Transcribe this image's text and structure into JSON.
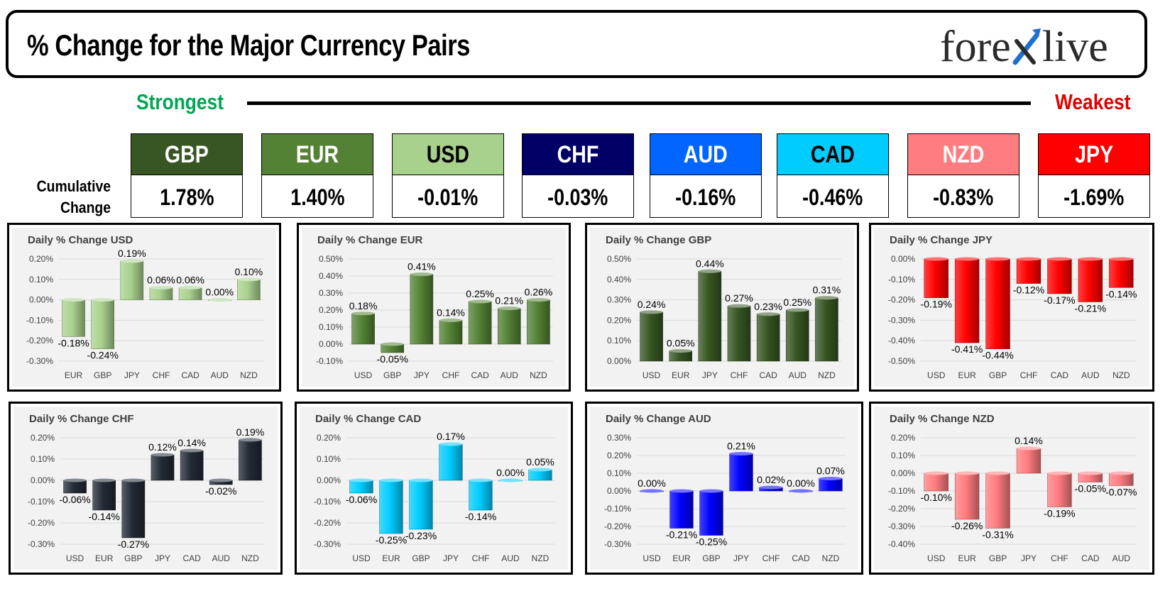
{
  "header": {
    "title": "% Change for the Major Currency Pairs",
    "logo_part1": "fore",
    "logo_part2": "live"
  },
  "ranking": {
    "strongest_label": "Strongest",
    "weakest_label": "Weakest",
    "cumulative_label_line1": "Cumulative",
    "cumulative_label_line2": "Change",
    "currencies": [
      {
        "code": "GBP",
        "value": "1.78%",
        "bg": "#375623",
        "fg": "#ffffff"
      },
      {
        "code": "EUR",
        "value": "1.40%",
        "bg": "#548235",
        "fg": "#ffffff"
      },
      {
        "code": "USD",
        "value": "-0.01%",
        "bg": "#a9d18e",
        "fg": "#000000"
      },
      {
        "code": "CHF",
        "value": "-0.03%",
        "bg": "#000066",
        "fg": "#ffffff"
      },
      {
        "code": "AUD",
        "value": "-0.16%",
        "bg": "#0066ff",
        "fg": "#ffffff"
      },
      {
        "code": "CAD",
        "value": "-0.46%",
        "bg": "#00ccff",
        "fg": "#000000"
      },
      {
        "code": "NZD",
        "value": "-0.83%",
        "bg": "#ff7c80",
        "fg": "#ffffff"
      },
      {
        "code": "JPY",
        "value": "-1.69%",
        "bg": "#ff0000",
        "fg": "#ffffff"
      }
    ]
  },
  "chart_data": [
    {
      "type": "bar",
      "title": "Daily % Change USD",
      "categories": [
        "EUR",
        "GBP",
        "JPY",
        "CHF",
        "CAD",
        "AUD",
        "NZD"
      ],
      "values": [
        -0.18,
        -0.24,
        0.19,
        0.06,
        0.06,
        0.0,
        0.1
      ],
      "ylim": [
        -0.3,
        0.2
      ],
      "yticks": [
        "0.20%",
        "0.10%",
        "0.00%",
        "-0.10%",
        "-0.20%",
        "-0.30%"
      ],
      "color": "#a9d18e",
      "grid": true
    },
    {
      "type": "bar",
      "title": "Daily % Change EUR",
      "categories": [
        "USD",
        "GBP",
        "JPY",
        "CHF",
        "CAD",
        "AUD",
        "NZD"
      ],
      "values": [
        0.18,
        -0.05,
        0.41,
        0.14,
        0.25,
        0.21,
        0.26
      ],
      "ylim": [
        -0.1,
        0.5
      ],
      "yticks": [
        "0.50%",
        "0.40%",
        "0.30%",
        "0.20%",
        "0.10%",
        "0.00%",
        "-0.10%"
      ],
      "color": "#548235",
      "grid": true
    },
    {
      "type": "bar",
      "title": "Daily % Change GBP",
      "categories": [
        "USD",
        "EUR",
        "JPY",
        "CHF",
        "CAD",
        "AUD",
        "NZD"
      ],
      "values": [
        0.24,
        0.05,
        0.44,
        0.27,
        0.23,
        0.25,
        0.31
      ],
      "ylim": [
        0.0,
        0.5
      ],
      "yticks": [
        "0.50%",
        "0.40%",
        "0.30%",
        "0.20%",
        "0.10%",
        "0.00%"
      ],
      "color": "#375623",
      "grid": true
    },
    {
      "type": "bar",
      "title": "Daily % Change JPY",
      "categories": [
        "USD",
        "EUR",
        "GBP",
        "CHF",
        "CAD",
        "AUD",
        "NZD"
      ],
      "values": [
        -0.19,
        -0.41,
        -0.44,
        -0.12,
        -0.17,
        -0.21,
        -0.14
      ],
      "ylim": [
        -0.5,
        0.0
      ],
      "yticks": [
        "0.00%",
        "-0.10%",
        "-0.20%",
        "-0.30%",
        "-0.40%",
        "-0.50%"
      ],
      "color": "#ff0000",
      "grid": true
    },
    {
      "type": "bar",
      "title": "Daily % Change CHF",
      "categories": [
        "USD",
        "EUR",
        "GBP",
        "JPY",
        "CAD",
        "AUD",
        "NZD"
      ],
      "values": [
        -0.06,
        -0.14,
        -0.27,
        0.12,
        0.14,
        -0.02,
        0.19
      ],
      "ylim": [
        -0.3,
        0.2
      ],
      "yticks": [
        "0.20%",
        "0.10%",
        "0.00%",
        "-0.10%",
        "-0.20%",
        "-0.30%"
      ],
      "color": "#222a35",
      "grid": true
    },
    {
      "type": "bar",
      "title": "Daily % Change CAD",
      "categories": [
        "USD",
        "EUR",
        "GBP",
        "JPY",
        "CHF",
        "AUD",
        "NZD"
      ],
      "values": [
        -0.06,
        -0.25,
        -0.23,
        0.17,
        -0.14,
        0.0,
        0.05
      ],
      "ylim": [
        -0.3,
        0.2
      ],
      "yticks": [
        "0.20%",
        "0.10%",
        "0.00%",
        "-0.10%",
        "-0.20%",
        "-0.30%"
      ],
      "color": "#00ccff",
      "grid": true
    },
    {
      "type": "bar",
      "title": "Daily % Change AUD",
      "categories": [
        "USD",
        "EUR",
        "GBP",
        "JPY",
        "CHF",
        "CAD",
        "NZD"
      ],
      "values": [
        0.0,
        -0.21,
        -0.25,
        0.21,
        0.02,
        0.0,
        0.07
      ],
      "ylim": [
        -0.3,
        0.3
      ],
      "yticks": [
        "0.30%",
        "0.20%",
        "0.10%",
        "0.00%",
        "-0.10%",
        "-0.20%",
        "-0.30%"
      ],
      "color": "#0000ff",
      "grid": true
    },
    {
      "type": "bar",
      "title": "Daily % Change NZD",
      "categories": [
        "USD",
        "EUR",
        "GBP",
        "JPY",
        "CHF",
        "CAD",
        "AUD"
      ],
      "values": [
        -0.1,
        -0.26,
        -0.31,
        0.14,
        -0.19,
        -0.05,
        -0.07
      ],
      "ylim": [
        -0.4,
        0.2
      ],
      "yticks": [
        "0.20%",
        "0.10%",
        "0.00%",
        "-0.10%",
        "-0.20%",
        "-0.30%",
        "-0.40%"
      ],
      "color": "#ff7c80",
      "grid": true
    }
  ]
}
